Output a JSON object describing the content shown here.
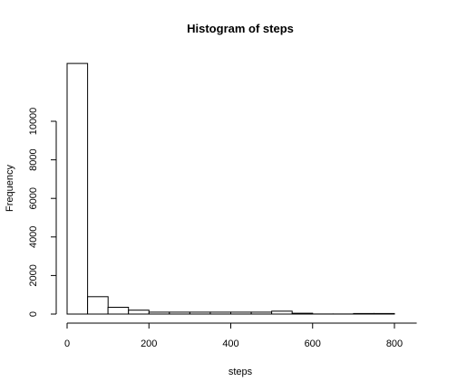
{
  "chart_data": {
    "type": "bar",
    "title": "Histogram of steps",
    "xlabel": "steps",
    "ylabel": "Frequency",
    "bin_width": 50,
    "bins": [
      {
        "start": 0,
        "end": 50,
        "count": 13000
      },
      {
        "start": 50,
        "end": 100,
        "count": 900
      },
      {
        "start": 100,
        "end": 150,
        "count": 350
      },
      {
        "start": 150,
        "end": 200,
        "count": 200
      },
      {
        "start": 200,
        "end": 250,
        "count": 100
      },
      {
        "start": 250,
        "end": 300,
        "count": 100
      },
      {
        "start": 300,
        "end": 350,
        "count": 100
      },
      {
        "start": 350,
        "end": 400,
        "count": 100
      },
      {
        "start": 400,
        "end": 450,
        "count": 100
      },
      {
        "start": 450,
        "end": 500,
        "count": 100
      },
      {
        "start": 500,
        "end": 550,
        "count": 150
      },
      {
        "start": 550,
        "end": 600,
        "count": 40
      },
      {
        "start": 600,
        "end": 650,
        "count": 5
      },
      {
        "start": 650,
        "end": 700,
        "count": 5
      },
      {
        "start": 700,
        "end": 750,
        "count": 30
      },
      {
        "start": 750,
        "end": 800,
        "count": 30
      }
    ],
    "xlim": [
      0,
      850
    ],
    "ylim": [
      0,
      13000
    ],
    "x_ticks": [
      0,
      200,
      400,
      600,
      800
    ],
    "y_ticks": [
      0,
      2000,
      4000,
      6000,
      8000,
      10000
    ],
    "grid": false,
    "bar_fill": "#ffffff",
    "bar_stroke": "#000000"
  }
}
